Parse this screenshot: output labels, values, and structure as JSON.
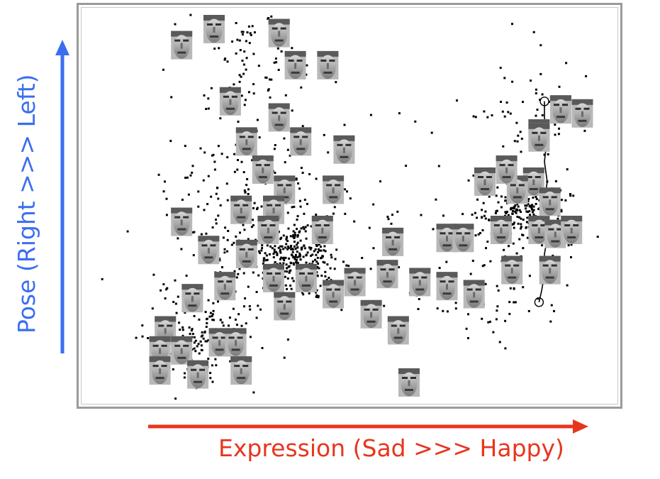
{
  "colors": {
    "x_axis": "#e8351e",
    "y_axis": "#3b6ef0",
    "points": "#000000",
    "frame": "#9a9a9a"
  },
  "chart_data": {
    "type": "scatter",
    "title": "",
    "xlabel": "Expression (Sad >>> Happy)",
    "ylabel": "Pose (Right >>> Left)",
    "grid": false,
    "legend": "none",
    "x_direction": "Sad to Happy (left to right)",
    "y_direction": "Right to Left (bottom to top)",
    "xlim": [
      0,
      100
    ],
    "ylim": [
      0,
      100
    ],
    "face_thumbnails": [
      [
        19,
        10
      ],
      [
        25,
        6
      ],
      [
        37,
        7
      ],
      [
        40,
        15
      ],
      [
        46,
        15
      ],
      [
        28,
        24
      ],
      [
        37,
        28
      ],
      [
        41,
        34
      ],
      [
        31,
        34
      ],
      [
        49,
        36
      ],
      [
        34,
        41
      ],
      [
        38,
        46
      ],
      [
        47,
        46
      ],
      [
        30,
        51
      ],
      [
        36,
        51
      ],
      [
        19,
        54
      ],
      [
        35,
        56
      ],
      [
        45,
        56
      ],
      [
        24,
        61
      ],
      [
        31,
        62
      ],
      [
        42,
        68
      ],
      [
        51,
        69
      ],
      [
        27,
        70
      ],
      [
        36,
        68
      ],
      [
        57,
        67
      ],
      [
        21,
        73
      ],
      [
        38,
        75
      ],
      [
        47,
        72
      ],
      [
        16,
        81
      ],
      [
        15,
        86
      ],
      [
        19,
        86
      ],
      [
        26,
        84
      ],
      [
        29,
        84
      ],
      [
        15,
        91
      ],
      [
        22,
        92
      ],
      [
        30,
        91
      ],
      [
        54,
        77
      ],
      [
        59,
        81
      ],
      [
        63,
        69
      ],
      [
        61,
        94
      ],
      [
        58,
        59
      ],
      [
        68,
        58
      ],
      [
        71,
        58
      ],
      [
        68,
        70
      ],
      [
        73,
        72
      ],
      [
        78,
        56
      ],
      [
        85,
        56
      ],
      [
        87,
        66
      ],
      [
        80,
        66
      ],
      [
        84,
        44
      ],
      [
        87,
        49
      ],
      [
        81,
        46
      ],
      [
        88,
        57
      ],
      [
        75,
        44
      ],
      [
        85,
        32
      ],
      [
        79,
        41
      ],
      [
        89,
        26
      ],
      [
        93,
        27
      ],
      [
        85,
        33
      ],
      [
        91,
        56
      ]
    ],
    "clusters": [
      {
        "cx": 32,
        "cy": 53,
        "sx": 8,
        "sy": 13,
        "n": 260
      },
      {
        "cx": 40,
        "cy": 62,
        "sx": 4,
        "sy": 4,
        "n": 260
      },
      {
        "cx": 22,
        "cy": 82,
        "sx": 5,
        "sy": 7,
        "n": 160
      },
      {
        "cx": 30,
        "cy": 14,
        "sx": 5,
        "sy": 8,
        "n": 90
      },
      {
        "cx": 82,
        "cy": 51,
        "sx": 4,
        "sy": 4,
        "n": 210
      },
      {
        "cx": 83,
        "cy": 28,
        "sx": 6,
        "sy": 9,
        "n": 70
      },
      {
        "cx": 80,
        "cy": 66,
        "sx": 6,
        "sy": 8,
        "n": 80
      },
      {
        "cx": 60,
        "cy": 60,
        "sx": 10,
        "sy": 14,
        "n": 55
      }
    ],
    "trajectory": [
      [
        86,
        24
      ],
      [
        86,
        28
      ],
      [
        86.5,
        33
      ],
      [
        86,
        39
      ],
      [
        86.5,
        44
      ],
      [
        86,
        49
      ],
      [
        86,
        53
      ],
      [
        86.5,
        58
      ],
      [
        86,
        62
      ],
      [
        86,
        67
      ],
      [
        85.5,
        71
      ],
      [
        85,
        74
      ]
    ]
  }
}
